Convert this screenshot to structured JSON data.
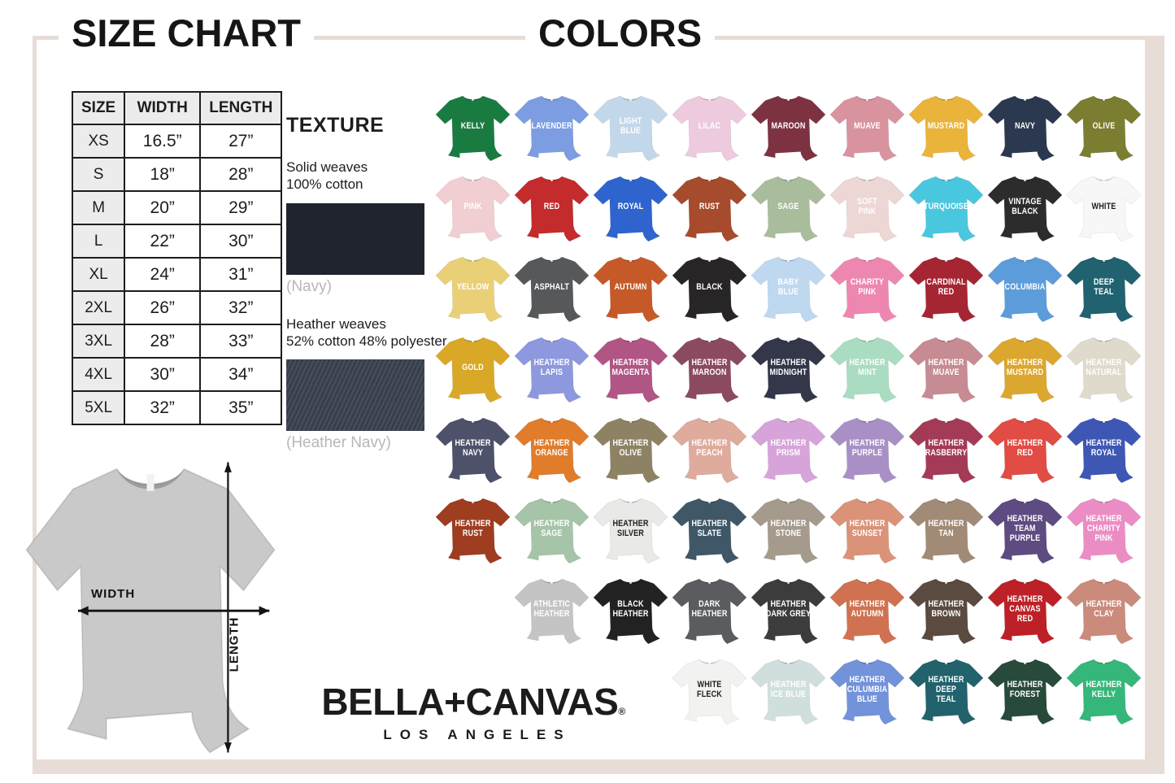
{
  "titles": {
    "size_chart": "SIZE CHART",
    "colors": "COLORS"
  },
  "size_table": {
    "headers": [
      "SIZE",
      "WIDTH",
      "LENGTH"
    ],
    "rows": [
      [
        "XS",
        "16.5”",
        "27”"
      ],
      [
        "S",
        "18”",
        "28”"
      ],
      [
        "M",
        "20”",
        "29”"
      ],
      [
        "L",
        "22”",
        "30”"
      ],
      [
        "XL",
        "24”",
        "31”"
      ],
      [
        "2XL",
        "26”",
        "32”"
      ],
      [
        "3XL",
        "28”",
        "33”"
      ],
      [
        "4XL",
        "30”",
        "34”"
      ],
      [
        "5XL",
        "32”",
        "35”"
      ]
    ]
  },
  "texture": {
    "title": "TEXTURE",
    "solid_line1": "Solid weaves",
    "solid_line2": "100% cotton",
    "solid_caption": "(Navy)",
    "solid_color": "#20242e",
    "heather_line1": "Heather weaves",
    "heather_line2": "52% cotton 48% polyester",
    "heather_caption": "(Heather Navy)",
    "heather_color": "#3a4150"
  },
  "measurement": {
    "width_label": "WIDTH",
    "length_label": "LENGTH",
    "shirt_color": "#c9c9c9"
  },
  "brand": {
    "name": "BELLA+CANVAS",
    "registered": "®",
    "subtitle": "LOS ANGELES"
  },
  "colors_grid": {
    "columns": 9,
    "rows": [
      {
        "offset": 0,
        "shirts": [
          {
            "label": "KELLY",
            "color": "#1a7b41"
          },
          {
            "label": "LAVENDER",
            "color": "#7c9de2"
          },
          {
            "label": "LIGHT\nBLUE",
            "color": "#c2d8ea"
          },
          {
            "label": "LILAC",
            "color": "#eecade"
          },
          {
            "label": "MAROON",
            "color": "#7d3242"
          },
          {
            "label": "MUAVE",
            "color": "#d8939f"
          },
          {
            "label": "MUSTARD",
            "color": "#eab33a"
          },
          {
            "label": "NAVY",
            "color": "#2b3950"
          },
          {
            "label": "OLIVE",
            "color": "#7b7d30"
          }
        ]
      },
      {
        "offset": 0,
        "shirts": [
          {
            "label": "PINK",
            "color": "#f0ced2"
          },
          {
            "label": "RED",
            "color": "#c32b2d"
          },
          {
            "label": "ROYAL",
            "color": "#2f64cf"
          },
          {
            "label": "RUST",
            "color": "#a74b2d"
          },
          {
            "label": "SAGE",
            "color": "#a9bc9c"
          },
          {
            "label": "SOFT\nPINK",
            "color": "#ecd7d5"
          },
          {
            "label": "TURQUOISE",
            "color": "#49c7de"
          },
          {
            "label": "VINTAGE\nBLACK",
            "color": "#2d2c2d"
          },
          {
            "label": "WHITE",
            "color": "#f7f7f7",
            "dark": true
          }
        ]
      },
      {
        "offset": 0,
        "shirts": [
          {
            "label": "YELLOW",
            "color": "#e9d077"
          },
          {
            "label": "ASPHALT",
            "color": "#57585a"
          },
          {
            "label": "AUTUMN",
            "color": "#c55a28"
          },
          {
            "label": "BLACK",
            "color": "#272526"
          },
          {
            "label": "BABY\nBLUE",
            "color": "#bed8f0"
          },
          {
            "label": "CHARITY\nPINK",
            "color": "#ee87b0"
          },
          {
            "label": "CARDINAL\nRED",
            "color": "#a52532"
          },
          {
            "label": "COLUMBIA",
            "color": "#5c9cda"
          },
          {
            "label": "DEEP\nTEAL",
            "color": "#20626f"
          }
        ]
      },
      {
        "offset": 0,
        "shirts": [
          {
            "label": "GOLD",
            "color": "#d9a827"
          },
          {
            "label": "HEATHER\nLAPIS",
            "color": "#8e98de"
          },
          {
            "label": "HEATHER\nMAGENTA",
            "color": "#b05584"
          },
          {
            "label": "HEATHER\nMAROON",
            "color": "#8b4a5f"
          },
          {
            "label": "HEATHER\nMIDNIGHT",
            "color": "#34364a"
          },
          {
            "label": "HEATHER\nMINT",
            "color": "#aadcc2"
          },
          {
            "label": "HEATHER\nMUAVE",
            "color": "#c78b93"
          },
          {
            "label": "HEATHER\nMUSTARD",
            "color": "#dba72e"
          },
          {
            "label": "HEATHER\nNATURAL",
            "color": "#dfdbcc"
          }
        ]
      },
      {
        "offset": 0,
        "shirts": [
          {
            "label": "HEATHER\nNAVY",
            "color": "#4d5169"
          },
          {
            "label": "HEATHER\nORANGE",
            "color": "#e07c2a"
          },
          {
            "label": "HEATHER\nOLIVE",
            "color": "#8d8364"
          },
          {
            "label": "HEATHER\nPEACH",
            "color": "#deab9d"
          },
          {
            "label": "HEATHER\nPRISM",
            "color": "#d7a4da"
          },
          {
            "label": "HEATHER\nPURPLE",
            "color": "#a890c6"
          },
          {
            "label": "HEATHER\nRASBERRY",
            "color": "#a43b56"
          },
          {
            "label": "HEATHER\nRED",
            "color": "#e14c44"
          },
          {
            "label": "HEATHER\nROYAL",
            "color": "#3e57b5"
          }
        ]
      },
      {
        "offset": 0,
        "shirts": [
          {
            "label": "HEATHER\nRUST",
            "color": "#9e3d20"
          },
          {
            "label": "HEATHER\nSAGE",
            "color": "#a6c4a8"
          },
          {
            "label": "HEATHER\nSILVER",
            "color": "#e9e9e7",
            "dark": true
          },
          {
            "label": "HEATHER\nSLATE",
            "color": "#3f5767"
          },
          {
            "label": "HEATHER\nSTONE",
            "color": "#a59b8d"
          },
          {
            "label": "HEATHER\nSUNSET",
            "color": "#da9378"
          },
          {
            "label": "HEATHER\nTAN",
            "color": "#a18b76"
          },
          {
            "label": "HEATHER\nTEAM\nPURPLE",
            "color": "#5e4b81"
          },
          {
            "label": "HEATHER\nCHARITY\nPINK",
            "color": "#eb8dc4"
          }
        ]
      },
      {
        "offset": 1,
        "shirts": [
          {
            "label": "ATHLETIC\nHEATHER",
            "color": "#c4c4c4"
          },
          {
            "label": "BLACK\nHEATHER",
            "color": "#222222"
          },
          {
            "label": "DARK\nHEATHER",
            "color": "#5a5c5f"
          },
          {
            "label": "HEATHER\nDARK GREY",
            "color": "#3c3c3c"
          },
          {
            "label": "HEATHER\nAUTUMN",
            "color": "#d07251"
          },
          {
            "label": "HEATHER\nBROWN",
            "color": "#5a4a40"
          },
          {
            "label": "HEATHER\nCANVAS\nRED",
            "color": "#bd2127"
          },
          {
            "label": "HEATHER\nCLAY",
            "color": "#ca8b7d"
          }
        ]
      },
      {
        "offset": 3,
        "shirts": [
          {
            "label": "WHITE\nFLECK",
            "color": "#f2f2f0",
            "dark": true
          },
          {
            "label": "HEATHER\nICE BLUE",
            "color": "#d0dfde"
          },
          {
            "label": "HEATHER\nCULUMBIA\nBLUE",
            "color": "#7292da"
          },
          {
            "label": "HEATHER\nDEEP\nTEAL",
            "color": "#21626d"
          },
          {
            "label": "HEATHER\nFOREST",
            "color": "#284a3b"
          },
          {
            "label": "HEATHER\nKELLY",
            "color": "#35b77a"
          }
        ]
      }
    ]
  }
}
